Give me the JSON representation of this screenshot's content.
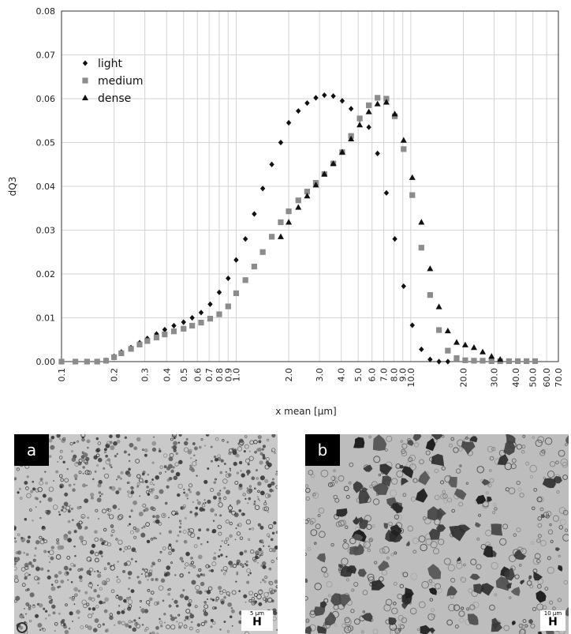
{
  "chart_data": {
    "type": "scatter",
    "x_scale": "log",
    "xlim": [
      0.1,
      70.0
    ],
    "ylim": [
      0,
      0.08
    ],
    "grid": true,
    "xlabel": "x mean [µm]",
    "ylabel": "dQ3",
    "legend_position": "top-left",
    "x_ticks": [
      "0.1",
      "0.2",
      "0.3",
      "0.4",
      "0.5",
      "0.6",
      "0.7",
      "0.8",
      "0.9",
      "1.0",
      "2.0",
      "3.0",
      "4.0",
      "5.0",
      "6.0",
      "7.0",
      "8.0",
      "9.0",
      "10.0",
      "20.0",
      "30.0",
      "40.0",
      "50.0",
      "60.0",
      "70.0"
    ],
    "y_ticks": [
      "0.00",
      "0.01",
      "0.02",
      "0.03",
      "0.04",
      "0.05",
      "0.06",
      "0.07",
      "0.08"
    ],
    "series": [
      {
        "name": "light",
        "marker": "diamond",
        "color": "#111111",
        "x": [
          0.1,
          0.12,
          0.14,
          0.16,
          0.18,
          0.2,
          0.22,
          0.25,
          0.28,
          0.31,
          0.35,
          0.39,
          0.44,
          0.5,
          0.56,
          0.63,
          0.71,
          0.8,
          0.9,
          1.0,
          1.13,
          1.27,
          1.42,
          1.6,
          1.8,
          2.0,
          2.27,
          2.55,
          2.86,
          3.2,
          3.6,
          4.05,
          4.55,
          5.1,
          5.75,
          6.45,
          7.25,
          8.1,
          9.1,
          10.2,
          11.5,
          12.9,
          14.5,
          16.3
        ],
        "y": [
          0.0,
          0.0,
          0.0,
          0.0,
          0.0003,
          0.0012,
          0.0022,
          0.0032,
          0.0043,
          0.0053,
          0.0063,
          0.0073,
          0.0082,
          0.009,
          0.01,
          0.0112,
          0.0131,
          0.0158,
          0.019,
          0.0232,
          0.028,
          0.0337,
          0.0395,
          0.045,
          0.05,
          0.0545,
          0.0572,
          0.059,
          0.0602,
          0.0608,
          0.0606,
          0.0595,
          0.0577,
          0.0553,
          0.0535,
          0.0475,
          0.0385,
          0.028,
          0.0172,
          0.0083,
          0.0028,
          0.0005,
          0.0,
          0.0
        ]
      },
      {
        "name": "medium",
        "marker": "square",
        "color": "#8c8c8c",
        "x": [
          0.1,
          0.12,
          0.14,
          0.16,
          0.18,
          0.2,
          0.22,
          0.25,
          0.28,
          0.31,
          0.35,
          0.39,
          0.44,
          0.5,
          0.56,
          0.63,
          0.71,
          0.8,
          0.9,
          1.0,
          1.13,
          1.27,
          1.42,
          1.6,
          1.8,
          2.0,
          2.27,
          2.55,
          2.86,
          3.2,
          3.6,
          4.05,
          4.55,
          5.1,
          5.75,
          6.45,
          7.25,
          8.1,
          9.1,
          10.2,
          11.5,
          12.9,
          14.5,
          16.3,
          18.3,
          20.5,
          23.0,
          25.8,
          29.0,
          32.5,
          36.5,
          41.0,
          46.0,
          51.5
        ],
        "y": [
          0.0,
          0.0,
          0.0,
          0.0,
          0.0002,
          0.001,
          0.0019,
          0.0029,
          0.0039,
          0.0047,
          0.0055,
          0.0062,
          0.0069,
          0.0075,
          0.0082,
          0.0089,
          0.0098,
          0.0108,
          0.0126,
          0.0156,
          0.0186,
          0.0217,
          0.025,
          0.0285,
          0.0318,
          0.0343,
          0.0368,
          0.0388,
          0.0408,
          0.0428,
          0.0452,
          0.0478,
          0.0515,
          0.0555,
          0.0585,
          0.0602,
          0.06,
          0.056,
          0.0485,
          0.038,
          0.026,
          0.0152,
          0.0072,
          0.0025,
          0.0008,
          0.0003,
          0.0002,
          0.0002,
          0.0001,
          0.0001,
          0.0001,
          0.0001,
          0.0001,
          0.0001
        ]
      },
      {
        "name": "dense",
        "marker": "triangle",
        "color": "#111111",
        "x": [
          1.8,
          2.0,
          2.27,
          2.55,
          2.86,
          3.2,
          3.6,
          4.05,
          4.55,
          5.1,
          5.75,
          6.45,
          7.25,
          8.1,
          9.1,
          10.2,
          11.5,
          12.9,
          14.5,
          16.3,
          18.3,
          20.5,
          23.0,
          25.8,
          29.0,
          32.5
        ],
        "y": [
          0.0285,
          0.0318,
          0.0352,
          0.0378,
          0.0403,
          0.0428,
          0.0452,
          0.0478,
          0.0508,
          0.054,
          0.057,
          0.0588,
          0.0592,
          0.0565,
          0.0505,
          0.042,
          0.0318,
          0.0212,
          0.0125,
          0.007,
          0.0044,
          0.0038,
          0.0032,
          0.0022,
          0.0012,
          0.0005
        ]
      }
    ]
  },
  "panels": [
    {
      "label": "a",
      "scale_text": "5 µm",
      "scale_glyph": "H"
    },
    {
      "label": "b",
      "scale_text": "10 µm",
      "scale_glyph": "H"
    }
  ]
}
